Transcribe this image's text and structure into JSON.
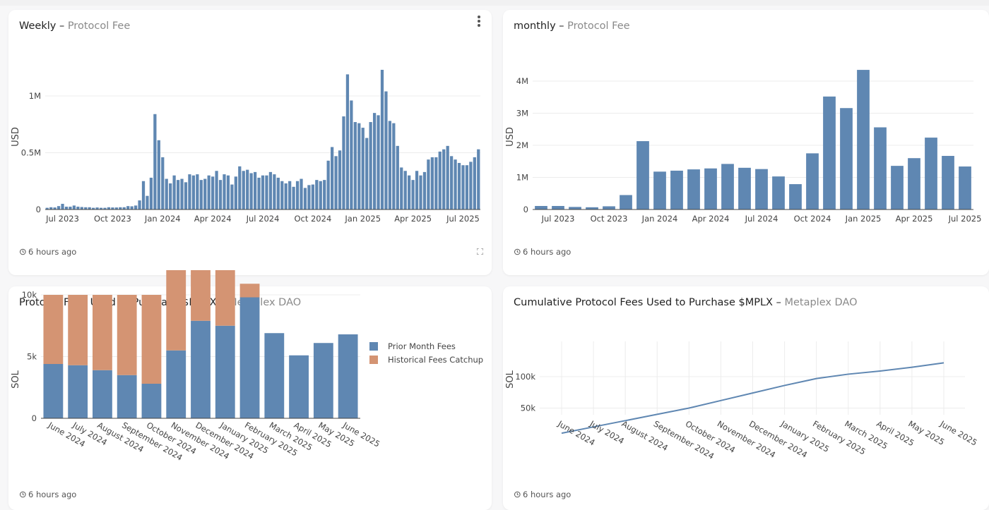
{
  "colors": {
    "blue": "#5f87b2",
    "orange": "#d49473",
    "grid": "#ececec",
    "axis": "#444444"
  },
  "cards": {
    "weekly": {
      "title": "Weekly",
      "separator": " – ",
      "subtitle": "Protocol Fee",
      "updated": "6 hours ago",
      "menu_icon": "kebab-menu-icon",
      "expand_icon": "expand-icon"
    },
    "monthly": {
      "title": "monthly",
      "separator": " – ",
      "subtitle": "Protocol Fee",
      "updated": "6 hours ago"
    },
    "purchase": {
      "title": "Protocol Fees Used to Purchase $MPLX",
      "separator": " – ",
      "subtitle": "Metaplex DAO",
      "updated": "6 hours ago"
    },
    "cumulative": {
      "title": "Cumulative Protocol Fees Used to Purchase $MPLX",
      "separator": " – ",
      "subtitle": "Metaplex DAO",
      "updated": "6 hours ago"
    }
  },
  "chart_data": [
    {
      "id": "weekly",
      "type": "bar",
      "title": "Weekly – Protocol Fee",
      "xlabel": "",
      "ylabel": "USD",
      "ylim": [
        0,
        1300000
      ],
      "yticks": [
        0,
        500000,
        1000000
      ],
      "ytick_labels": [
        "0",
        "0.5M",
        "1M"
      ],
      "x_tick_labels": [
        "Jul 2023",
        "Oct 2023",
        "Jan 2024",
        "Apr 2024",
        "Jul 2024",
        "Oct 2024",
        "Jan 2025",
        "Apr 2025",
        "Jul 2025"
      ],
      "x_tick_positions_week_index": [
        4,
        17,
        30,
        43,
        56,
        69,
        82,
        95,
        108
      ],
      "grid": true,
      "values": [
        15000,
        20000,
        18000,
        30000,
        50000,
        25000,
        25000,
        35000,
        25000,
        22000,
        20000,
        20000,
        15000,
        18000,
        15000,
        15000,
        20000,
        18000,
        18000,
        20000,
        20000,
        30000,
        28000,
        35000,
        80000,
        250000,
        120000,
        280000,
        840000,
        610000,
        460000,
        270000,
        230000,
        300000,
        260000,
        270000,
        240000,
        310000,
        300000,
        310000,
        260000,
        270000,
        300000,
        290000,
        340000,
        260000,
        310000,
        300000,
        220000,
        290000,
        380000,
        340000,
        350000,
        320000,
        330000,
        280000,
        300000,
        300000,
        330000,
        310000,
        280000,
        250000,
        230000,
        250000,
        200000,
        250000,
        270000,
        190000,
        215000,
        220000,
        260000,
        250000,
        260000,
        430000,
        550000,
        470000,
        520000,
        820000,
        1190000,
        960000,
        770000,
        760000,
        720000,
        630000,
        770000,
        850000,
        830000,
        1230000,
        1040000,
        780000,
        760000,
        560000,
        370000,
        340000,
        300000,
        260000,
        340000,
        300000,
        330000,
        440000,
        460000,
        460000,
        510000,
        530000,
        560000,
        470000,
        440000,
        410000,
        390000,
        390000,
        420000,
        460000,
        530000
      ]
    },
    {
      "id": "monthly",
      "type": "bar",
      "title": "monthly – Protocol Fee",
      "xlabel": "",
      "ylabel": "USD",
      "ylim": [
        0,
        4500000
      ],
      "yticks": [
        0,
        1000000,
        2000000,
        3000000,
        4000000
      ],
      "ytick_labels": [
        "0",
        "1M",
        "2M",
        "3M",
        "4M"
      ],
      "categories": [
        "Jun 2023",
        "Jul 2023",
        "Aug 2023",
        "Sep 2023",
        "Oct 2023",
        "Nov 2023",
        "Dec 2023",
        "Jan 2024",
        "Feb 2024",
        "Mar 2024",
        "Apr 2024",
        "May 2024",
        "Jun 2024",
        "Jul 2024",
        "Aug 2024",
        "Sep 2024",
        "Oct 2024",
        "Nov 2024",
        "Dec 2024",
        "Jan 2025",
        "Feb 2025",
        "Mar 2025",
        "Apr 2025",
        "May 2025",
        "Jun 2025",
        "Jul 2025"
      ],
      "x_tick_labels": [
        "Jul 2023",
        "Oct 2023",
        "Jan 2024",
        "Apr 2024",
        "Jul 2024",
        "Oct 2024",
        "Jan 2025",
        "Apr 2025",
        "Jul 2025"
      ],
      "x_tick_positions_month_index": [
        1,
        4,
        7,
        10,
        13,
        16,
        19,
        22,
        25
      ],
      "grid": true,
      "values": [
        110000,
        110000,
        80000,
        70000,
        100000,
        450000,
        2130000,
        1180000,
        1210000,
        1250000,
        1280000,
        1420000,
        1300000,
        1260000,
        1030000,
        790000,
        1750000,
        3520000,
        3160000,
        4350000,
        2560000,
        1360000,
        1600000,
        2240000,
        1670000,
        1340000
      ]
    },
    {
      "id": "purchase",
      "type": "bar",
      "stacked": true,
      "title": "Protocol Fees Used to Purchase $MPLX – Metaplex DAO",
      "xlabel": "",
      "ylabel": "SOL",
      "ylim": [
        0,
        12500
      ],
      "yticks": [
        0,
        5000,
        10000
      ],
      "ytick_labels": [
        "0",
        "5k",
        "10k"
      ],
      "categories": [
        "June 2024",
        "July 2024",
        "August 2024",
        "September 2024",
        "October 2024",
        "November 2024",
        "December 2024",
        "January 2025",
        "February 2025",
        "March 2025",
        "April 2025",
        "May 2025",
        "June 2025"
      ],
      "series": [
        {
          "name": "Prior Month Fees",
          "color": "#5f87b2",
          "values": [
            4400,
            4300,
            3900,
            3500,
            2800,
            5500,
            7900,
            7500,
            9800,
            6900,
            5100,
            6100,
            6800
          ]
        },
        {
          "name": "Historical Fees Catchup",
          "color": "#d49473",
          "values": [
            5600,
            5700,
            6100,
            6500,
            7200,
            6500,
            4100,
            4500,
            1100,
            0,
            0,
            0,
            0
          ]
        }
      ],
      "legend": "top-right",
      "grid": true
    },
    {
      "id": "cumulative",
      "type": "line",
      "title": "Cumulative Protocol Fees Used to Purchase $MPLX – Metaplex DAO",
      "xlabel": "",
      "ylabel": "SOL",
      "ylim": [
        0,
        130000
      ],
      "yticks": [
        50000,
        100000
      ],
      "ytick_labels": [
        "50k",
        "100k"
      ],
      "categories": [
        "June 2024",
        "July 2024",
        "August 2024",
        "September 2024",
        "October 2024",
        "November 2024",
        "December 2024",
        "January 2025",
        "February 2025",
        "March 2025",
        "April 2025",
        "May 2025",
        "June 2025"
      ],
      "values": [
        10000,
        20000,
        30000,
        40000,
        50000,
        62000,
        74000,
        86000,
        97000,
        104000,
        109000,
        115000,
        122000
      ],
      "grid": true
    }
  ]
}
